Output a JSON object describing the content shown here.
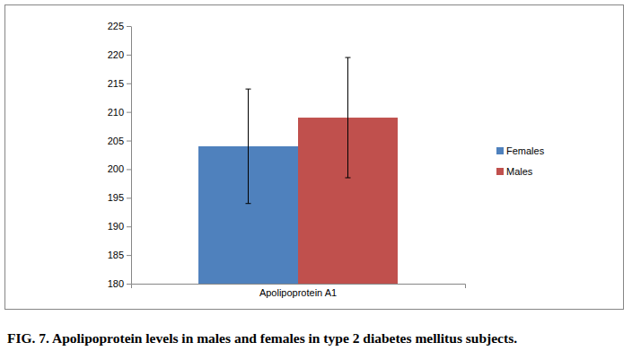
{
  "chart_data": {
    "type": "bar",
    "title": "FIG. 7. Apolipoprotein levels in males and females in type 2 diabetes mellitus subjects.",
    "categories": [
      "Apolipoprotein A1"
    ],
    "series": [
      {
        "name": "Females",
        "color": "#4f81bd",
        "values": [
          204
        ],
        "errors": [
          10
        ]
      },
      {
        "name": "Males",
        "color": "#c0504d",
        "values": [
          209
        ],
        "errors": [
          10.5
        ]
      }
    ],
    "ylim": [
      180,
      225
    ],
    "yticks": [
      180,
      185,
      190,
      195,
      200,
      205,
      210,
      215,
      220,
      225
    ],
    "grid": false,
    "legend": "right"
  }
}
